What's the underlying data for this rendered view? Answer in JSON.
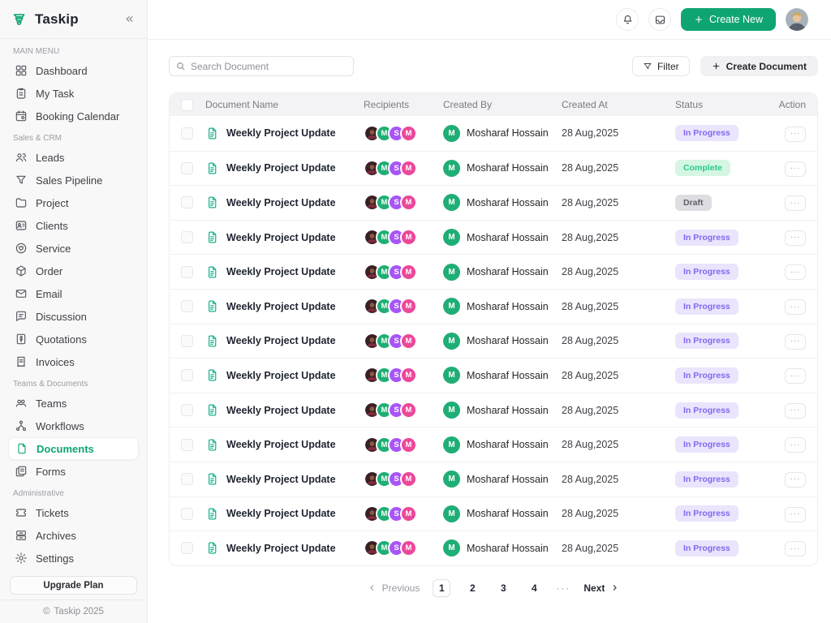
{
  "brand": {
    "name": "Taskip"
  },
  "topbar": {
    "create_new_label": "Create New"
  },
  "toolbar": {
    "search_placeholder": "Search Document",
    "filter_label": "Filter",
    "create_document_label": "Create Document"
  },
  "sidebar": {
    "sections": [
      {
        "label": "MAIN MENU",
        "items": [
          {
            "icon": "dashboard",
            "label": "Dashboard"
          },
          {
            "icon": "task",
            "label": "My Task"
          },
          {
            "icon": "calendar",
            "label": "Booking Calendar"
          }
        ]
      },
      {
        "label": "Sales & CRM",
        "items": [
          {
            "icon": "leads",
            "label": "Leads"
          },
          {
            "icon": "pipeline",
            "label": "Sales Pipeline"
          },
          {
            "icon": "project",
            "label": "Project"
          },
          {
            "icon": "clients",
            "label": "Clients"
          },
          {
            "icon": "service",
            "label": "Service"
          },
          {
            "icon": "order",
            "label": "Order"
          },
          {
            "icon": "email",
            "label": "Email"
          },
          {
            "icon": "discussion",
            "label": "Discussion"
          },
          {
            "icon": "quotations",
            "label": "Quotations"
          },
          {
            "icon": "invoices",
            "label": "Invoices"
          }
        ]
      },
      {
        "label": "Teams & Documents",
        "items": [
          {
            "icon": "teams",
            "label": "Teams"
          },
          {
            "icon": "workflows",
            "label": "Workflows"
          },
          {
            "icon": "documents",
            "label": "Documents",
            "active": true
          },
          {
            "icon": "forms",
            "label": "Forms"
          }
        ]
      },
      {
        "label": "Administrative",
        "items": [
          {
            "icon": "tickets",
            "label": "Tickets"
          },
          {
            "icon": "archives",
            "label": "Archives"
          },
          {
            "icon": "settings",
            "label": "Settings"
          }
        ]
      }
    ],
    "upgrade_label": "Upgrade Plan",
    "footer_text": "Taskip 2025",
    "footer_symbol": "©"
  },
  "statuses": {
    "in_progress": {
      "label": "In Progress",
      "bg": "#ebe4fd",
      "color": "#8468f0"
    },
    "complete": {
      "label": "Complete",
      "bg": "#d5f6e4",
      "color": "#2bc98a"
    },
    "draft": {
      "label": "Draft",
      "bg": "#dedee2",
      "color": "#5e5e66"
    }
  },
  "table": {
    "columns": [
      "Document Name",
      "Recipients",
      "Created By",
      "Created At",
      "Status",
      "Action"
    ],
    "recipients": [
      {
        "kind": "photo"
      },
      {
        "kind": "initial",
        "text": "M",
        "bg": "#1fae76"
      },
      {
        "kind": "initial",
        "text": "S",
        "bg": "#a855f7"
      },
      {
        "kind": "initial",
        "text": "M",
        "bg": "#ec4899"
      }
    ],
    "action_glyph": "···",
    "rows": [
      {
        "name": "Weekly Project Update",
        "created_by": "Mosharaf Hossain",
        "created_by_initial": "M",
        "created_by_color": "#1fae76",
        "created_at": "28 Aug,2025",
        "status": "in_progress"
      },
      {
        "name": "Weekly Project Update",
        "created_by": "Mosharaf Hossain",
        "created_by_initial": "M",
        "created_by_color": "#1fae76",
        "created_at": "28 Aug,2025",
        "status": "complete"
      },
      {
        "name": "Weekly Project Update",
        "created_by": "Mosharaf Hossain",
        "created_by_initial": "M",
        "created_by_color": "#1fae76",
        "created_at": "28 Aug,2025",
        "status": "draft"
      },
      {
        "name": "Weekly Project Update",
        "created_by": "Mosharaf Hossain",
        "created_by_initial": "M",
        "created_by_color": "#1fae76",
        "created_at": "28 Aug,2025",
        "status": "in_progress"
      },
      {
        "name": "Weekly Project Update",
        "created_by": "Mosharaf Hossain",
        "created_by_initial": "M",
        "created_by_color": "#1fae76",
        "created_at": "28 Aug,2025",
        "status": "in_progress"
      },
      {
        "name": "Weekly Project Update",
        "created_by": "Mosharaf Hossain",
        "created_by_initial": "M",
        "created_by_color": "#1fae76",
        "created_at": "28 Aug,2025",
        "status": "in_progress"
      },
      {
        "name": "Weekly Project Update",
        "created_by": "Mosharaf Hossain",
        "created_by_initial": "M",
        "created_by_color": "#1fae76",
        "created_at": "28 Aug,2025",
        "status": "in_progress"
      },
      {
        "name": "Weekly Project Update",
        "created_by": "Mosharaf Hossain",
        "created_by_initial": "M",
        "created_by_color": "#1fae76",
        "created_at": "28 Aug,2025",
        "status": "in_progress"
      },
      {
        "name": "Weekly Project Update",
        "created_by": "Mosharaf Hossain",
        "created_by_initial": "M",
        "created_by_color": "#1fae76",
        "created_at": "28 Aug,2025",
        "status": "in_progress"
      },
      {
        "name": "Weekly Project Update",
        "created_by": "Mosharaf Hossain",
        "created_by_initial": "M",
        "created_by_color": "#1fae76",
        "created_at": "28 Aug,2025",
        "status": "in_progress"
      },
      {
        "name": "Weekly Project Update",
        "created_by": "Mosharaf Hossain",
        "created_by_initial": "M",
        "created_by_color": "#1fae76",
        "created_at": "28 Aug,2025",
        "status": "in_progress"
      },
      {
        "name": "Weekly Project Update",
        "created_by": "Mosharaf Hossain",
        "created_by_initial": "M",
        "created_by_color": "#1fae76",
        "created_at": "28 Aug,2025",
        "status": "in_progress"
      },
      {
        "name": "Weekly Project Update",
        "created_by": "Mosharaf Hossain",
        "created_by_initial": "M",
        "created_by_color": "#1fae76",
        "created_at": "28 Aug,2025",
        "status": "in_progress"
      }
    ]
  },
  "pagination": {
    "previous": "Previous",
    "pages": [
      "1",
      "2",
      "3",
      "4"
    ],
    "current": "1",
    "ellipsis": "···",
    "next": "Next"
  },
  "colors": {
    "brand": "#0fa573"
  }
}
